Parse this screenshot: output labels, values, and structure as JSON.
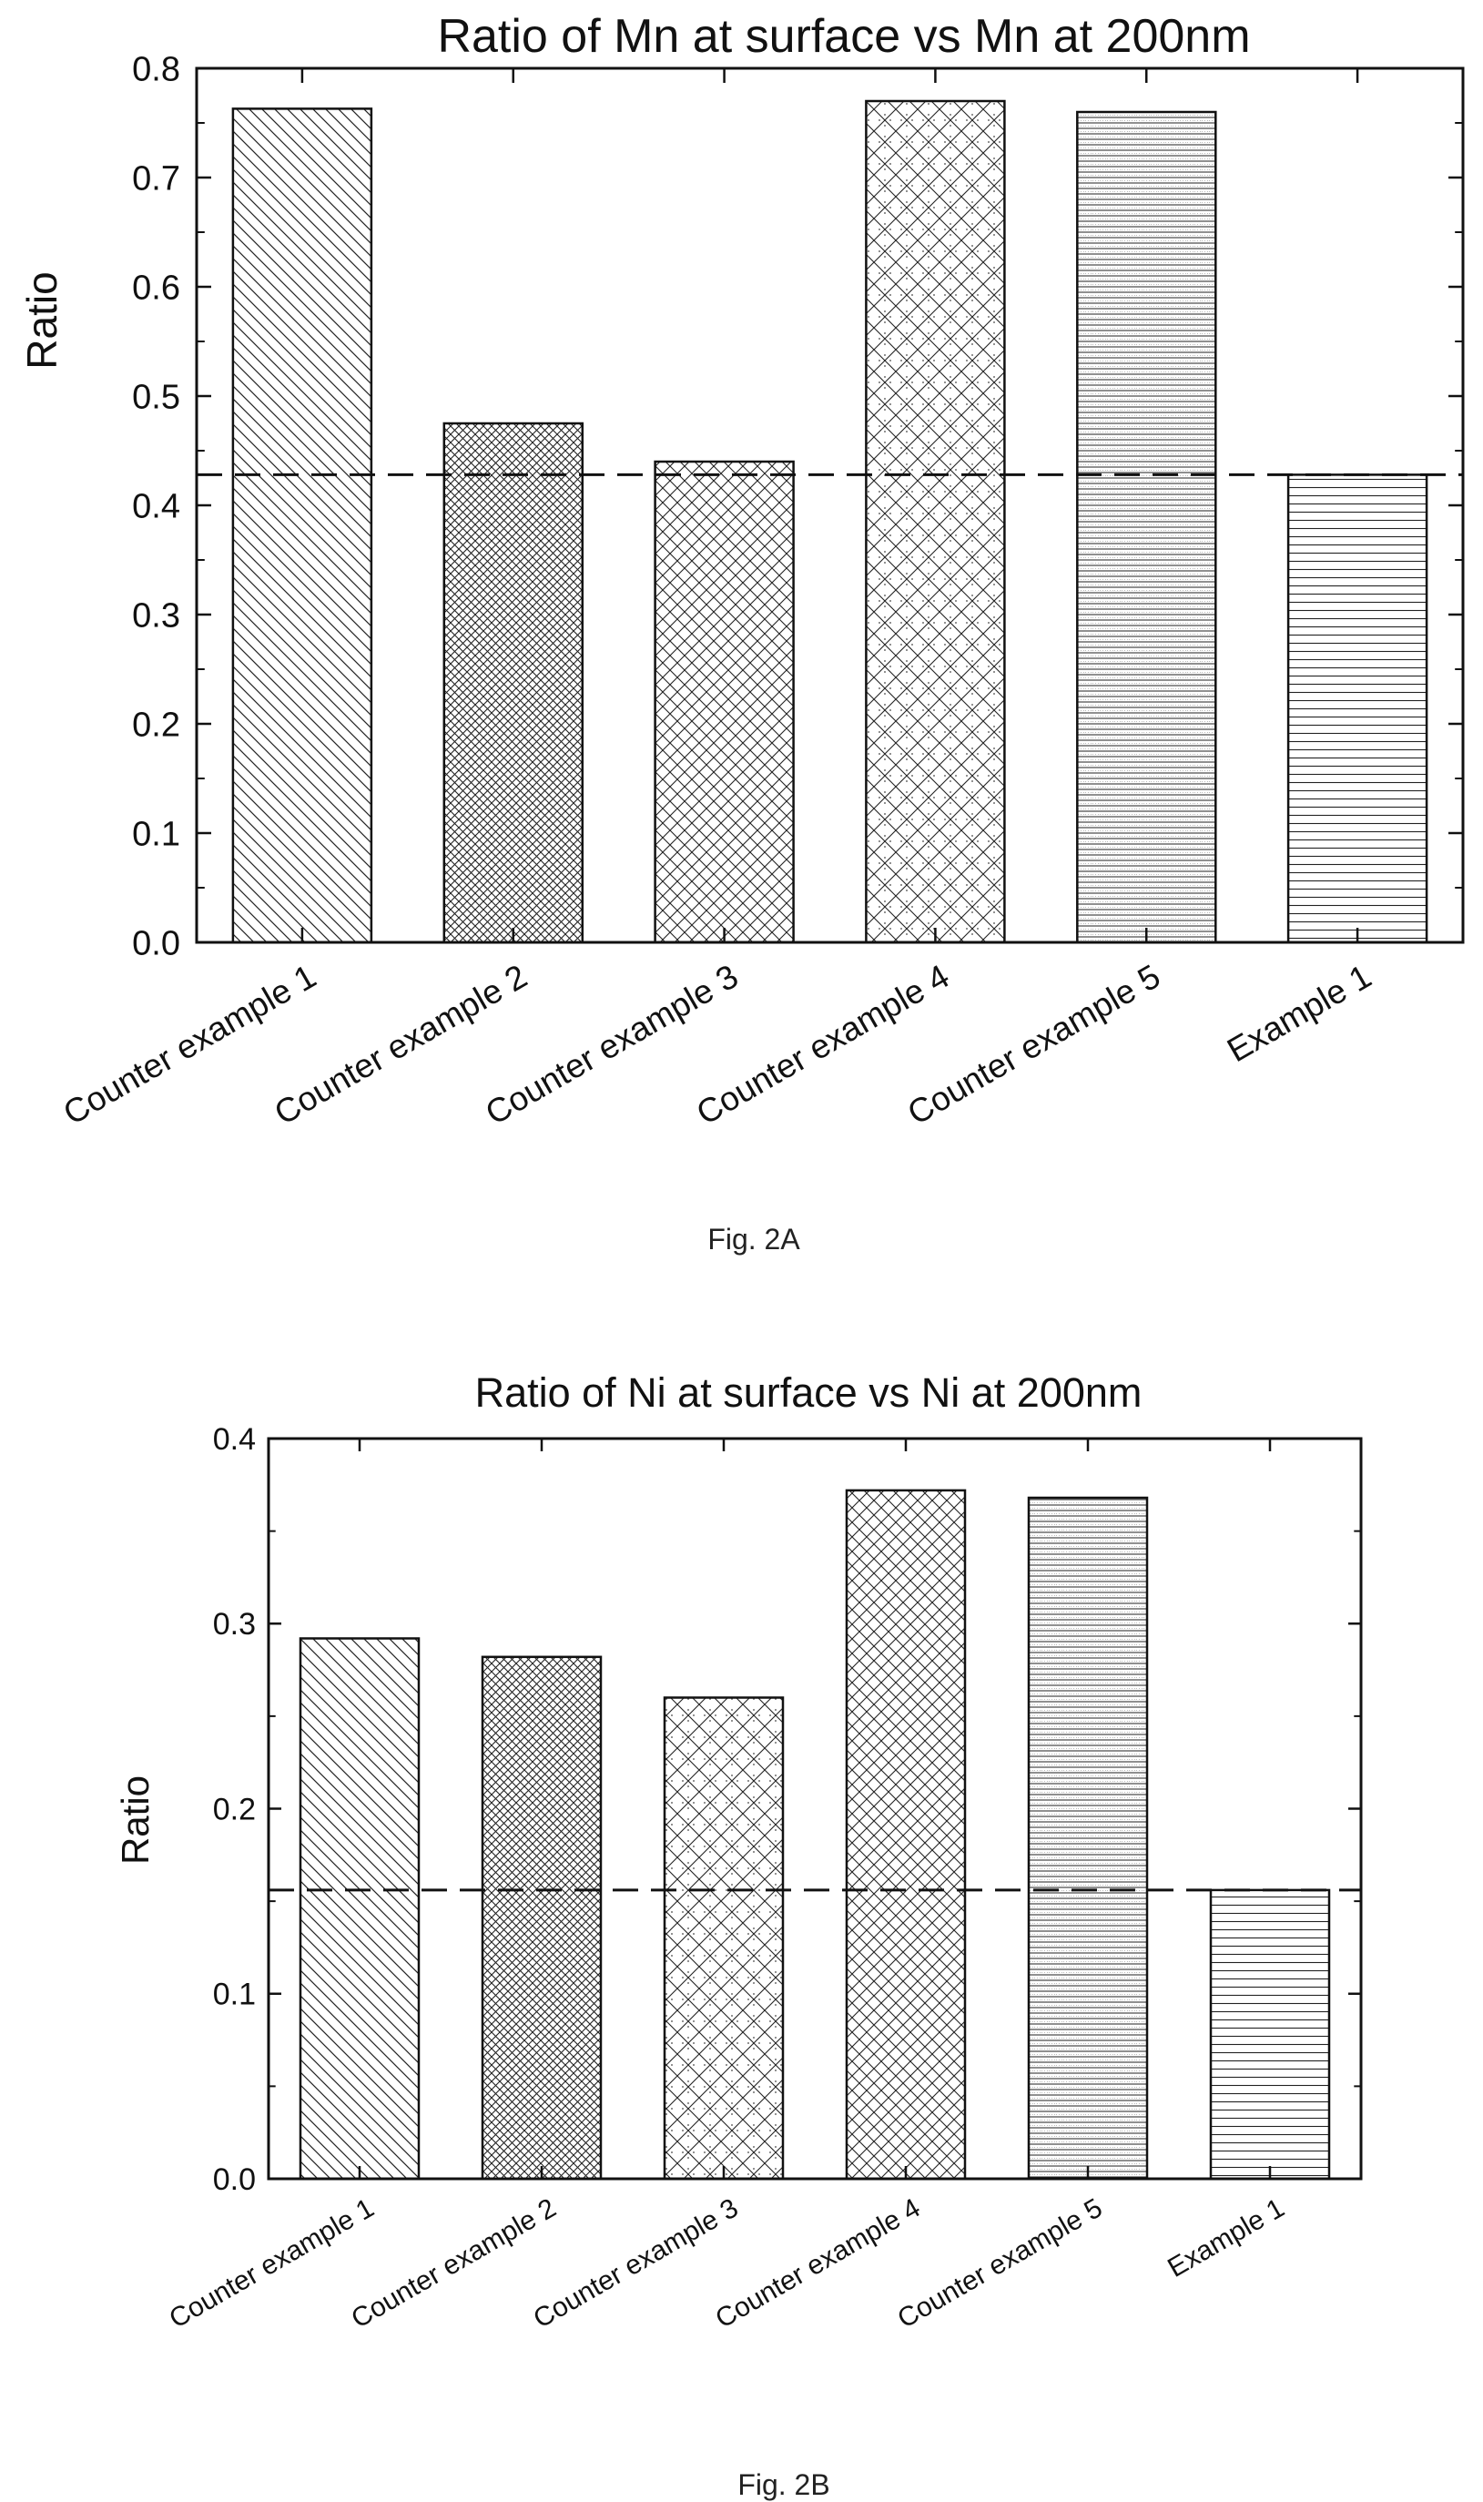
{
  "chart_data": [
    {
      "type": "bar",
      "title": "Ratio of Mn at surface vs Mn at 200nm",
      "ylabel": "Ratio",
      "xlabel": "",
      "caption": "Fig. 2A",
      "categories": [
        "Counter example 1",
        "Counter example 2",
        "Counter example 3",
        "Counter example 4",
        "Counter example 5",
        "Example 1"
      ],
      "values": [
        0.763,
        0.475,
        0.44,
        0.77,
        0.76,
        0.428
      ],
      "patterns": [
        "diag-back",
        "crosshatch-fine",
        "crosshatch",
        "crosshatch-dots",
        "horizontal-fine",
        "horizontal"
      ],
      "ylim": [
        0,
        0.8
      ],
      "yticks": [
        0.0,
        0.1,
        0.2,
        0.3,
        0.4,
        0.5,
        0.6,
        0.7,
        0.8
      ],
      "ytick_labels": [
        "0.0",
        "0.1",
        "0.2",
        "0.3",
        "0.4",
        "0.5",
        "0.6",
        "0.7",
        "0.8"
      ],
      "reference_line": 0.428,
      "grid": false,
      "legend": "none"
    },
    {
      "type": "bar",
      "title": "Ratio of Ni at surface vs Ni at 200nm",
      "ylabel": "Ratio",
      "xlabel": "",
      "caption": "Fig. 2B",
      "categories": [
        "Counter example 1",
        "Counter example 2",
        "Counter example 3",
        "Counter example 4",
        "Counter example 5",
        "Example 1"
      ],
      "values": [
        0.292,
        0.282,
        0.26,
        0.372,
        0.368,
        0.156
      ],
      "patterns": [
        "diag-back",
        "crosshatch-fine",
        "crosshatch-dots",
        "crosshatch",
        "horizontal-fine",
        "horizontal"
      ],
      "ylim": [
        0,
        0.4
      ],
      "yticks": [
        0.0,
        0.1,
        0.2,
        0.3,
        0.4
      ],
      "ytick_labels": [
        "0.0",
        "0.1",
        "0.2",
        "0.3",
        "0.4"
      ],
      "reference_line": 0.156,
      "grid": false,
      "legend": "none"
    }
  ],
  "colors": {
    "ink": "#111111",
    "background": "#ffffff"
  }
}
